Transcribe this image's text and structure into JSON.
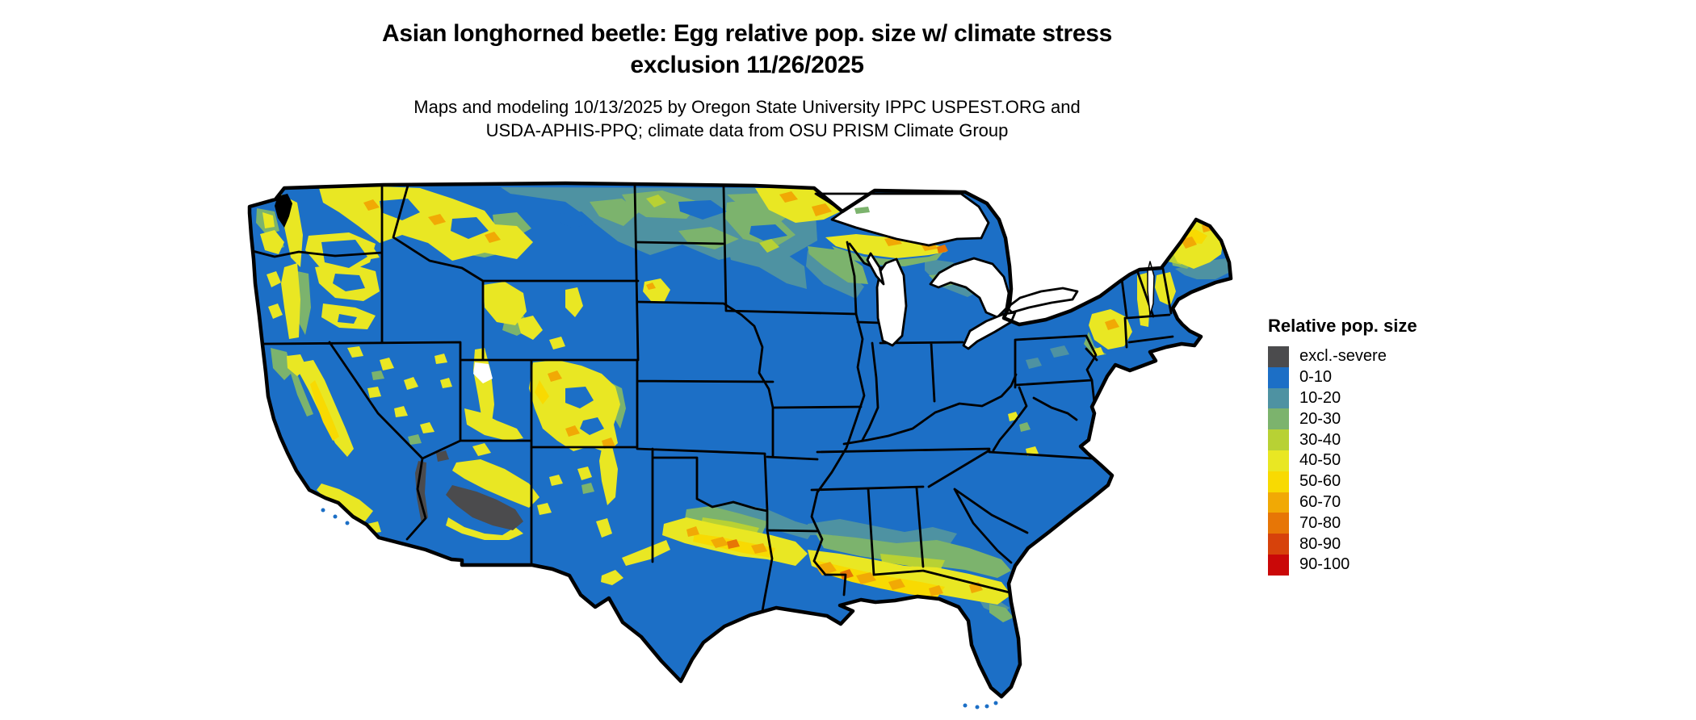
{
  "header": {
    "title_line1": "Asian longhorned beetle: Egg relative pop. size w/ climate stress",
    "title_line2": "exclusion 11/26/2025",
    "subtitle_line1": "Maps and modeling 10/13/2025 by Oregon State University IPPC USPEST.ORG and",
    "subtitle_line2": "USDA-APHIS-PPQ; climate data from OSU PRISM Climate Group"
  },
  "legend": {
    "title": "Relative pop. size",
    "items": [
      {
        "label": "excl.-severe",
        "color": "#4b4b4d"
      },
      {
        "label": "0-10",
        "color": "#1c6fc6"
      },
      {
        "label": "10-20",
        "color": "#4e92a2"
      },
      {
        "label": "20-30",
        "color": "#7cb36d"
      },
      {
        "label": "30-40",
        "color": "#b8d134"
      },
      {
        "label": "40-50",
        "color": "#e9e723"
      },
      {
        "label": "50-60",
        "color": "#f8da02"
      },
      {
        "label": "60-70",
        "color": "#f1a905"
      },
      {
        "label": "70-80",
        "color": "#e77606"
      },
      {
        "label": "80-90",
        "color": "#d7420b"
      },
      {
        "label": "90-100",
        "color": "#ca0808"
      }
    ]
  },
  "map": {
    "region": "Contiguous United States",
    "kind": "raster choropleth of relative population size with state boundaries",
    "base_category": "0-10",
    "base_color": "#1c6fc6",
    "boundary_color": "#000000",
    "water_background": "#ffffff"
  }
}
